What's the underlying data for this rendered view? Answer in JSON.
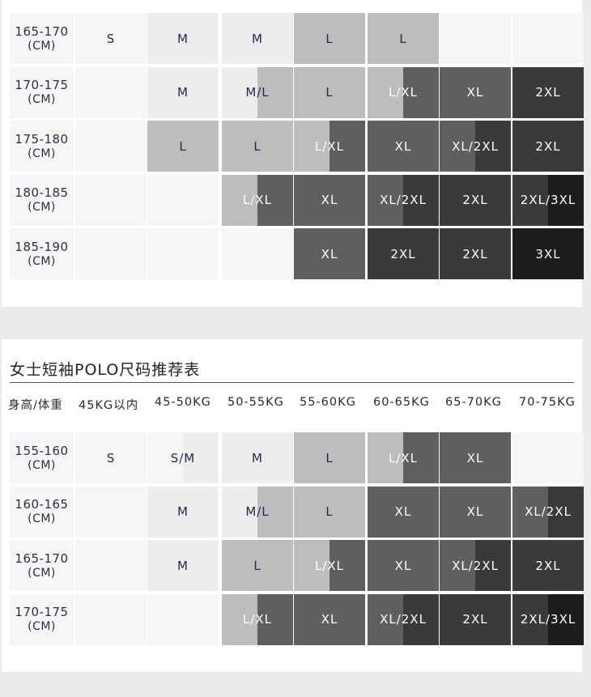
{
  "men_chart": {
    "rows": [
      {
        "height": "165-170",
        "unit": "(CM)",
        "cells": [
          "S",
          "M",
          "M",
          "L",
          "L",
          "",
          ""
        ]
      },
      {
        "height": "170-175",
        "unit": "(CM)",
        "cells": [
          "",
          "M",
          "M/L",
          "L",
          "L/XL",
          "XL",
          "2XL"
        ]
      },
      {
        "height": "175-180",
        "unit": "(CM)",
        "cells": [
          "",
          "L",
          "L",
          "L/XL",
          "XL",
          "XL/2XL",
          "2XL"
        ]
      },
      {
        "height": "180-185",
        "unit": "(CM)",
        "cells": [
          "",
          "",
          "L/XL",
          "XL",
          "XL/2XL",
          "2XL",
          "2XL/3XL"
        ]
      },
      {
        "height": "185-190",
        "unit": "(CM)",
        "cells": [
          "",
          "",
          "",
          "XL",
          "2XL",
          "2XL",
          "3XL"
        ]
      }
    ]
  },
  "women_chart": {
    "title": "女士短袖POLO尺码推荐表",
    "headers": [
      "身高/体重",
      "45KG以内",
      "45-50KG",
      "50-55KG",
      "55-60KG",
      "60-65KG",
      "65-70KG",
      "70-75KG"
    ],
    "rows": [
      {
        "height": "155-160",
        "unit": "(CM)",
        "cells": [
          "S",
          "S/M",
          "M",
          "L",
          "L/XL",
          "XL",
          ""
        ]
      },
      {
        "height": "160-165",
        "unit": "(CM)",
        "cells": [
          "",
          "M",
          "M/L",
          "L",
          "XL",
          "XL",
          "XL/2XL"
        ]
      },
      {
        "height": "165-170",
        "unit": "(CM)",
        "cells": [
          "",
          "M",
          "L",
          "L/XL",
          "XL",
          "XL/2XL",
          "2XL"
        ]
      },
      {
        "height": "170-175",
        "unit": "(CM)",
        "cells": [
          "",
          "",
          "L/XL",
          "XL",
          "XL/2XL",
          "2XL",
          "2XL/3XL"
        ]
      }
    ]
  },
  "colors": {
    "empty": "#f6f6f7",
    "S": "#f6f6f7",
    "M": "#ededed",
    "L": "#bdbdbd",
    "XL": "#5f5f5f",
    "2XL": "#3a3a3a",
    "3XL": "#1c1c1c",
    "text_dark": "#202a55",
    "text_light": "#ffffff"
  }
}
